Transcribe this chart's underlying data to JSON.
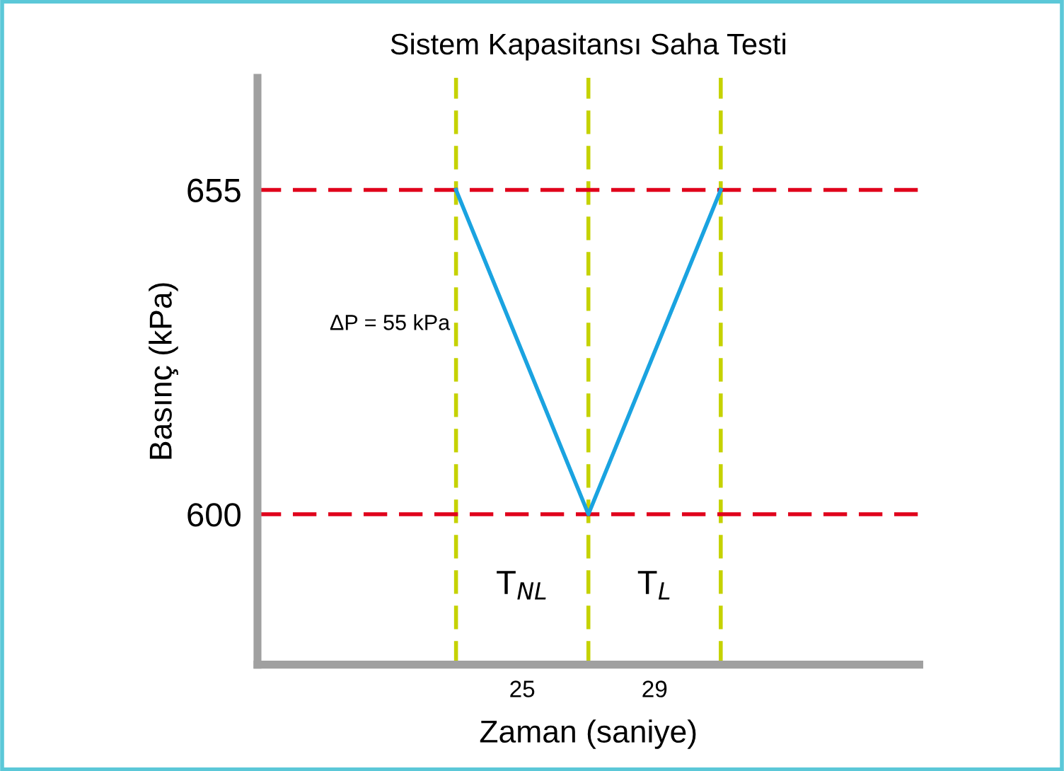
{
  "chart_data": {
    "type": "line",
    "title": "Sistem Kapasitansı Saha Testi",
    "xlabel": "Zaman (saniye)",
    "ylabel": "Basınç (kPa)",
    "categories": [
      null,
      null,
      null,
      null,
      null
    ],
    "series": [
      {
        "color": "#1aa3e0",
        "values": [
          null,
          655,
          600,
          655,
          null
        ]
      }
    ],
    "ylim": [
      574.5,
      674
    ],
    "yticks": [
      600,
      655
    ],
    "tick_labels": "y",
    "grid": "x",
    "legend": false,
    "marker": "none",
    "line_style": "solid",
    "ref_lines": [
      {
        "axis": "y",
        "value": 655,
        "color": "#e0001b",
        "line_style": "dashed"
      },
      {
        "axis": "y",
        "value": 600,
        "color": "#e0001b",
        "line_style": "dashed"
      }
    ],
    "annotations": [
      "ΔP = 55 kPa",
      "T$_{NL}$",
      "T$_{L}$",
      "25",
      "29"
    ]
  }
}
